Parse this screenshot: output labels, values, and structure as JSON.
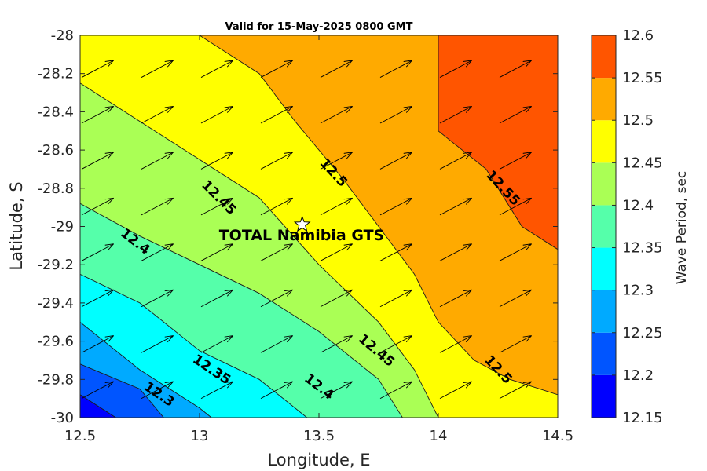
{
  "chart_data": {
    "type": "contour",
    "title": "Valid for 15-May-2025 0800 GMT",
    "xlabel": "Longitude, E",
    "ylabel": "Latitude, S",
    "colorbar_label": "Wave Period, sec",
    "xlim": [
      12.5,
      14.5
    ],
    "ylim": [
      -30,
      -28
    ],
    "x_ticks": [
      "12.5",
      "13",
      "13.5",
      "14",
      "14.5"
    ],
    "y_ticks": [
      "-28",
      "-28.2",
      "-28.4",
      "-28.6",
      "-28.8",
      "-29",
      "-29.2",
      "-29.4",
      "-29.6",
      "-29.8",
      "-30"
    ],
    "colorbar_ticks": [
      "12.15",
      "12.2",
      "12.25",
      "12.3",
      "12.35",
      "12.4",
      "12.45",
      "12.5",
      "12.55",
      "12.6"
    ],
    "levels": [
      {
        "min": 12.15,
        "max": 12.2,
        "color": "#0000ff"
      },
      {
        "min": 12.2,
        "max": 12.25,
        "color": "#0055ff"
      },
      {
        "min": 12.25,
        "max": 12.3,
        "color": "#00aaff"
      },
      {
        "min": 12.3,
        "max": 12.35,
        "color": "#00ffff"
      },
      {
        "min": 12.35,
        "max": 12.4,
        "color": "#55ffaa"
      },
      {
        "min": 12.4,
        "max": 12.45,
        "color": "#aaff55"
      },
      {
        "min": 12.45,
        "max": 12.5,
        "color": "#ffff00"
      },
      {
        "min": 12.5,
        "max": 12.55,
        "color": "#ffaa00"
      },
      {
        "min": 12.55,
        "max": 12.6,
        "color": "#ff5500"
      }
    ],
    "contours": [
      {
        "level": 12.55,
        "points": [
          [
            14.0,
            -28.0
          ],
          [
            14.0,
            -28.5
          ],
          [
            14.2,
            -28.7
          ],
          [
            14.35,
            -29.0
          ],
          [
            14.5,
            -29.12
          ]
        ]
      },
      {
        "level": 12.5,
        "points": [
          [
            13.0,
            -28.0
          ],
          [
            13.25,
            -28.2
          ],
          [
            13.4,
            -28.45
          ],
          [
            13.6,
            -28.75
          ],
          [
            13.75,
            -29.0
          ],
          [
            13.9,
            -29.25
          ],
          [
            14.0,
            -29.5
          ],
          [
            14.15,
            -29.7
          ],
          [
            14.3,
            -29.8
          ],
          [
            14.5,
            -29.88
          ]
        ]
      },
      {
        "level": 12.45,
        "points": [
          [
            12.5,
            -28.25
          ],
          [
            12.75,
            -28.45
          ],
          [
            13.0,
            -28.65
          ],
          [
            13.25,
            -28.85
          ],
          [
            13.5,
            -29.2
          ],
          [
            13.75,
            -29.5
          ],
          [
            13.9,
            -29.75
          ],
          [
            14.0,
            -30.0
          ]
        ]
      },
      {
        "level": 12.4,
        "points": [
          [
            12.5,
            -28.88
          ],
          [
            12.75,
            -29.05
          ],
          [
            13.0,
            -29.2
          ],
          [
            13.25,
            -29.35
          ],
          [
            13.5,
            -29.55
          ],
          [
            13.75,
            -29.8
          ],
          [
            13.85,
            -30.0
          ]
        ]
      },
      {
        "level": 12.35,
        "points": [
          [
            12.5,
            -29.25
          ],
          [
            12.75,
            -29.4
          ],
          [
            13.0,
            -29.65
          ],
          [
            13.25,
            -29.8
          ],
          [
            13.45,
            -30.0
          ]
        ]
      },
      {
        "level": 12.3,
        "points": [
          [
            12.5,
            -29.5
          ],
          [
            12.75,
            -29.75
          ],
          [
            13.0,
            -29.95
          ],
          [
            13.05,
            -30.0
          ]
        ]
      },
      {
        "level": 12.25,
        "points": [
          [
            12.5,
            -29.72
          ],
          [
            12.75,
            -29.85
          ],
          [
            12.85,
            -30.0
          ]
        ]
      },
      {
        "level": 12.2,
        "points": [
          [
            12.5,
            -29.88
          ],
          [
            12.65,
            -30.0
          ]
        ]
      }
    ],
    "contour_labels": [
      {
        "text": "12.55",
        "x": 14.27,
        "y": -28.8,
        "angle": 47
      },
      {
        "text": "12.5",
        "x": 13.56,
        "y": -28.72,
        "angle": 47
      },
      {
        "text": "12.5",
        "x": 14.25,
        "y": -29.75,
        "angle": 47
      },
      {
        "text": "12.45",
        "x": 13.08,
        "y": -28.85,
        "angle": 45
      },
      {
        "text": "12.45",
        "x": 13.74,
        "y": -29.65,
        "angle": 40
      },
      {
        "text": "12.4",
        "x": 12.73,
        "y": -29.08,
        "angle": 38
      },
      {
        "text": "12.4",
        "x": 13.5,
        "y": -29.84,
        "angle": 38
      },
      {
        "text": "12.35",
        "x": 13.05,
        "y": -29.75,
        "angle": 34
      },
      {
        "text": "12.3",
        "x": 12.83,
        "y": -29.88,
        "angle": 34
      }
    ],
    "arrows": {
      "x": [
        12.5,
        12.75,
        13.0,
        13.25,
        13.5,
        13.75,
        14.0,
        14.25
      ],
      "y": [
        -29.9,
        -29.66,
        -29.42,
        -29.18,
        -28.94,
        -28.7,
        -28.46,
        -28.22
      ],
      "direction_deg": 28,
      "magnitude": 1
    },
    "station": {
      "name": "TOTAL Namibia GTS",
      "lon": 13.43,
      "lat": -28.99
    }
  }
}
